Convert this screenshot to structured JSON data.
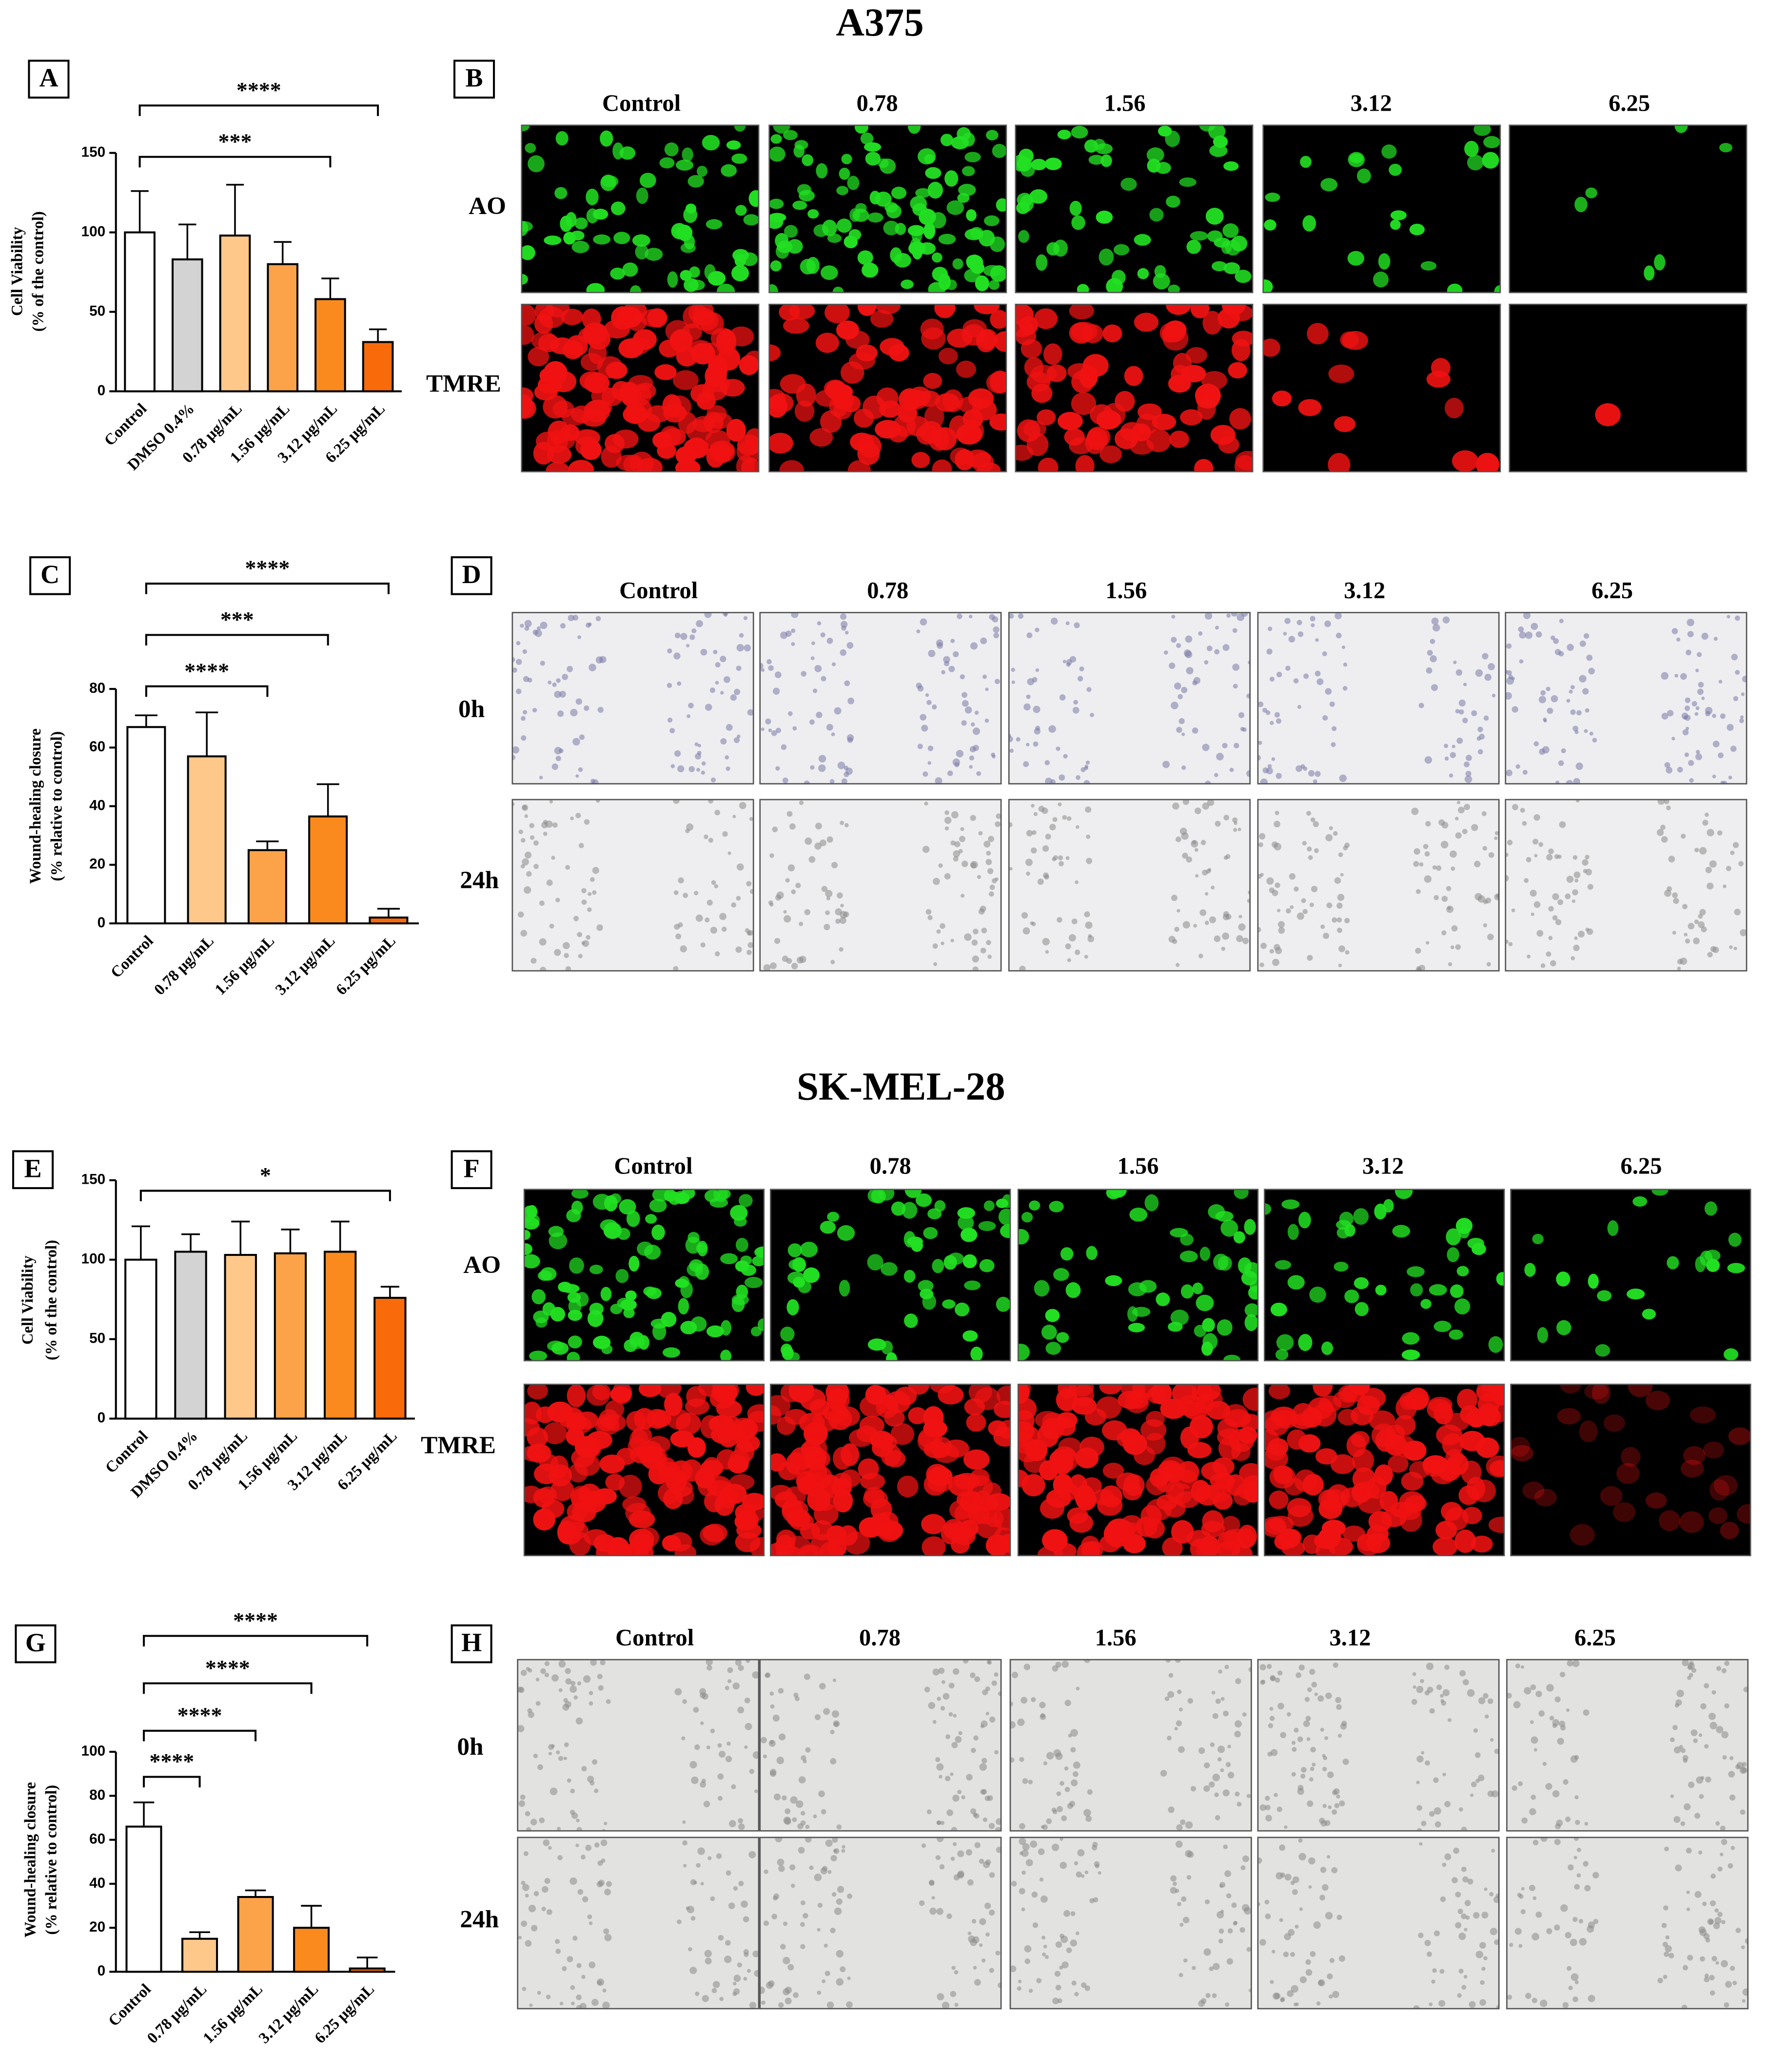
{
  "titles": [
    "A375",
    "SK-MEL-28"
  ],
  "chart_data": [
    {
      "type": "bar",
      "panel": "A",
      "ylabel": [
        "Cell Viability",
        "(% of the control)"
      ],
      "categories": [
        "Control",
        "DMSO 0.4%",
        "0.78 μg/mL",
        "1.56 μg/mL",
        "3.12 μg/mL",
        "6.25 μg/mL"
      ],
      "values": [
        100,
        83,
        98,
        80,
        58,
        31
      ],
      "errors": [
        26,
        22,
        32,
        14,
        13,
        8
      ],
      "colors": [
        "#ffffff",
        "#d3d3d3",
        "#fdc88a",
        "#fca34a",
        "#fb8a1e",
        "#f96a0a"
      ],
      "ylim": [
        0,
        150
      ],
      "yticks": [
        0,
        50,
        100,
        150
      ],
      "annotations": [
        {
          "text": "***",
          "from": "Control",
          "to": "3.12 μg/mL"
        },
        {
          "text": "****",
          "from": "Control",
          "to": "6.25 μg/mL"
        }
      ]
    },
    {
      "type": "bar",
      "panel": "C",
      "ylabel": [
        "Wound-healing closure",
        "(% relative to control)"
      ],
      "categories": [
        "Control",
        "0.78 μg/mL",
        "1.56 μg/mL",
        "3.12 μg/mL",
        "6.25 μg/mL"
      ],
      "values": [
        67,
        57,
        25,
        36.5,
        2
      ],
      "errors": [
        4,
        15,
        3,
        11,
        3
      ],
      "colors": [
        "#ffffff",
        "#fdc88a",
        "#fca34a",
        "#fb8a1e",
        "#f96a0a"
      ],
      "ylim": [
        0,
        80
      ],
      "yticks": [
        0,
        20,
        40,
        60,
        80
      ],
      "annotations": [
        {
          "text": "****",
          "from": "Control",
          "to": "1.56 μg/mL"
        },
        {
          "text": "***",
          "from": "Control",
          "to": "3.12 μg/mL"
        },
        {
          "text": "****",
          "from": "Control",
          "to": "6.25 μg/mL"
        }
      ]
    },
    {
      "type": "bar",
      "panel": "E",
      "ylabel": [
        "Cell Viability",
        "(% of the control)"
      ],
      "categories": [
        "Control",
        "DMSO 0.4%",
        "0.78 μg/mL",
        "1.56 μg/mL",
        "3.12 μg/mL",
        "6.25 μg/mL"
      ],
      "values": [
        100,
        105,
        103,
        104,
        105,
        76
      ],
      "errors": [
        21,
        11,
        21,
        15,
        19,
        7
      ],
      "colors": [
        "#ffffff",
        "#d3d3d3",
        "#fdc88a",
        "#fca34a",
        "#fb8a1e",
        "#f96a0a"
      ],
      "ylim": [
        0,
        150
      ],
      "yticks": [
        0,
        50,
        100,
        150
      ],
      "annotations": [
        {
          "text": "*",
          "from": "Control",
          "to": "6.25 μg/mL"
        }
      ]
    },
    {
      "type": "bar",
      "panel": "G",
      "ylabel": [
        "Wound-healing closure",
        "(% relative to control)"
      ],
      "categories": [
        "Control",
        "0.78 μg/mL",
        "1.56 μg/mL",
        "3.12 μg/mL",
        "6.25 μg/mL"
      ],
      "values": [
        66,
        15,
        34,
        20,
        1.5
      ],
      "errors": [
        11,
        3,
        3,
        10,
        5
      ],
      "colors": [
        "#ffffff",
        "#fdc88a",
        "#fca34a",
        "#fb8a1e",
        "#f96a0a"
      ],
      "ylim": [
        0,
        100
      ],
      "yticks": [
        0,
        20,
        40,
        60,
        80,
        100
      ],
      "annotations": [
        {
          "text": "****",
          "from": "Control",
          "to": "0.78 μg/mL"
        },
        {
          "text": "****",
          "from": "Control",
          "to": "1.56 μg/mL"
        },
        {
          "text": "****",
          "from": "Control",
          "to": "3.12 μg/mL"
        },
        {
          "text": "****",
          "from": "Control",
          "to": "6.25 μg/mL"
        }
      ]
    }
  ],
  "image_panels": [
    {
      "panel": "B",
      "columns": [
        "Control",
        "0.78",
        "1.56",
        "3.12",
        "6.25"
      ],
      "rows": [
        {
          "label": "AO",
          "color": "#22e022"
        },
        {
          "label": "TMRE",
          "color": "#f01212"
        }
      ]
    },
    {
      "panel": "D",
      "columns": [
        "Control",
        "0.78",
        "1.56",
        "3.12",
        "6.25"
      ],
      "rows": [
        {
          "label": "0h"
        },
        {
          "label": "24h"
        }
      ]
    },
    {
      "panel": "F",
      "columns": [
        "Control",
        "0.78",
        "1.56",
        "3.12",
        "6.25"
      ],
      "rows": [
        {
          "label": "AO",
          "color": "#22e022"
        },
        {
          "label": "TMRE",
          "color": "#f01212"
        }
      ]
    },
    {
      "panel": "H",
      "columns": [
        "Control",
        "0.78",
        "1.56",
        "3.12",
        "6.25"
      ],
      "rows": [
        {
          "label": "0h"
        },
        {
          "label": "24h"
        }
      ]
    }
  ]
}
